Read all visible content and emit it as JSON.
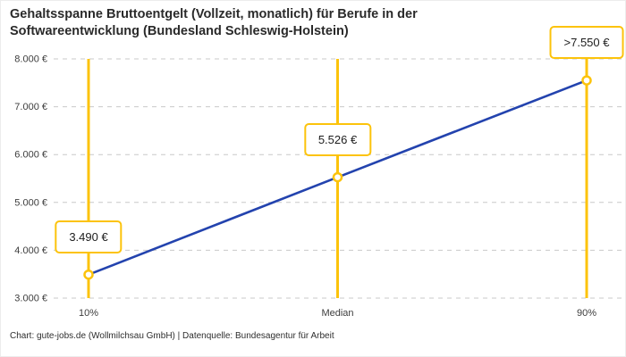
{
  "title_lines": [
    "Gehaltsspanne Bruttoentgelt (Vollzeit, monatlich) für Berufe in der",
    "Softwareentwicklung (Bundesland Schleswig-Holstein)"
  ],
  "footer": "Chart: gute-jobs.de (Wollmilchsau GmbH) | Datenquelle: Bundesagentur für Arbeit",
  "chart_data": {
    "type": "line",
    "title": "Gehaltsspanne Bruttoentgelt (Vollzeit, monatlich) für Berufe in der Softwareentwicklung (Bundesland Schleswig-Holstein)",
    "categories": [
      "10%",
      "Median",
      "90%"
    ],
    "values": [
      3490,
      5526,
      7550
    ],
    "point_labels": [
      "3.490 €",
      "5.526 €",
      ">7.550 €"
    ],
    "xlabel": "",
    "ylabel": "",
    "ylim": [
      3000,
      8000
    ],
    "ytick_values": [
      3000,
      4000,
      5000,
      6000,
      7000,
      8000
    ],
    "ytick_labels": [
      "3.000 €",
      "4.000 €",
      "5.000 €",
      "6.000 €",
      "7.000 €",
      "8.000 €"
    ],
    "grid": "horizontal-dashed",
    "legend": "none",
    "colors": {
      "line": "#2343ae",
      "vertical_line": "#fcc30b",
      "marker_stroke": "#fcc30b",
      "marker_fill": "#ffffff",
      "label_box_border": "#fcc30b",
      "grid": "#c9c9c9",
      "text": "#3d3d3d"
    }
  }
}
